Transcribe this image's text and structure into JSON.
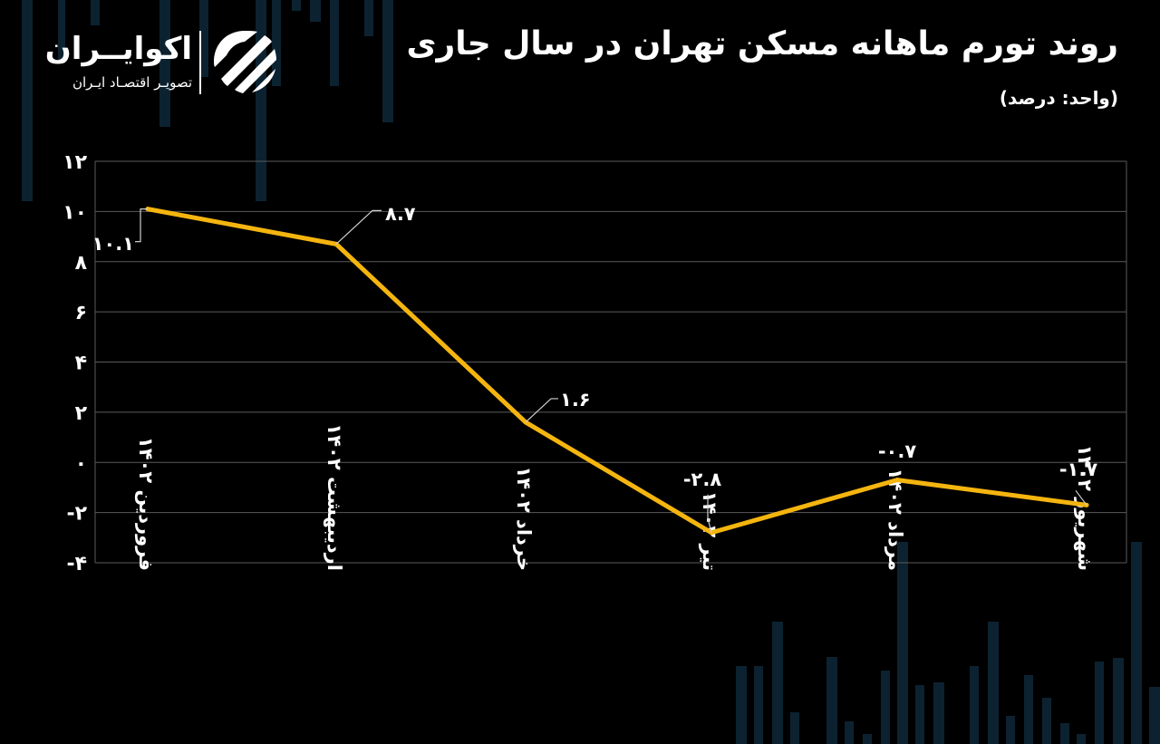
{
  "header": {
    "title": "روند تورم ماهانه مسکن تهران در سال جاری",
    "subtitle": "(واحد: درصد)"
  },
  "logo": {
    "name": "اکوایــران",
    "tagline": "تصویـر اقتصـاد ایـران",
    "icon": "ekoiran-swirl-icon"
  },
  "colors": {
    "background": "#000000",
    "line": "#F5B50F",
    "grid": "#5a5a5a",
    "text": "#ffffff",
    "decor_bars": "#0c2230"
  },
  "chart_data": {
    "type": "line",
    "categories": [
      "فروردین ۱۴۰۲",
      "اردیبهشت ۱۴۰۲",
      "خرداد ۱۴۰۲",
      "تیر ۱۴۰۲",
      "مرداد ۱۴۰۲",
      "شهریور ۱۴۰۲"
    ],
    "series": [
      {
        "values": [
          10.1,
          8.7,
          1.6,
          -2.8,
          -0.7,
          -1.7
        ]
      }
    ],
    "data_labels": [
      "۱۰.۱",
      "۸.۷",
      "۱.۶",
      "-۲.۸",
      "-۰.۷",
      "-۱.۷"
    ],
    "yticks": [
      12,
      10,
      8,
      6,
      4,
      2,
      0,
      -2,
      -4
    ],
    "ytick_labels": [
      "۱۲",
      "۱۰",
      "۸",
      "۶",
      "۴",
      "۲",
      "۰",
      "-۲",
      "-۴"
    ],
    "ylim": [
      -4,
      12
    ],
    "grid": true,
    "legend": "none"
  }
}
